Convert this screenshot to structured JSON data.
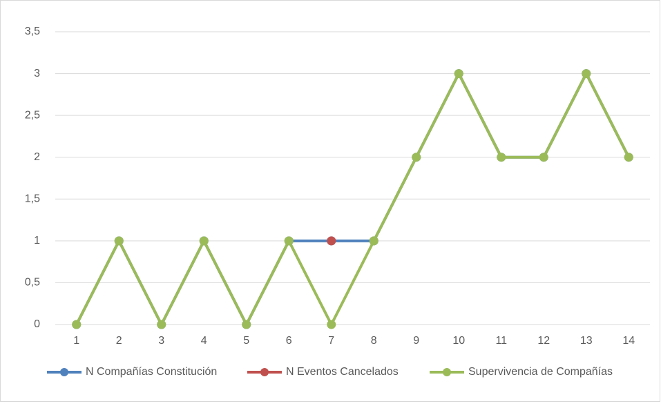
{
  "chart_data": {
    "type": "line",
    "categories": [
      "1",
      "2",
      "3",
      "4",
      "5",
      "6",
      "7",
      "8",
      "9",
      "10",
      "11",
      "12",
      "13",
      "14"
    ],
    "series": [
      {
        "name": "N Compañías Constitución",
        "color": "#4f81bd",
        "values": [
          0,
          1,
          0,
          1,
          0,
          1,
          1,
          1,
          2,
          3,
          2,
          2,
          3,
          2
        ]
      },
      {
        "name": "N Eventos Cancelados",
        "color": "#c0504d",
        "values": [
          null,
          null,
          null,
          null,
          null,
          null,
          1,
          null,
          null,
          null,
          null,
          null,
          null,
          null
        ]
      },
      {
        "name": "Supervivencia de Compañías",
        "color": "#9bbb59",
        "values": [
          0,
          1,
          0,
          1,
          0,
          1,
          0,
          1,
          2,
          3,
          2,
          2,
          3,
          2
        ]
      }
    ],
    "ylim": [
      0,
      3.5
    ],
    "yticks": [
      0,
      {
        "value": 0.5,
        "label": "0,5"
      },
      1,
      {
        "value": 1.5,
        "label": "1,5"
      },
      2,
      {
        "value": 2.5,
        "label": "2,5"
      },
      3,
      {
        "value": 3.5,
        "label": "3,5"
      }
    ],
    "grid": true,
    "legend": "bottom"
  }
}
